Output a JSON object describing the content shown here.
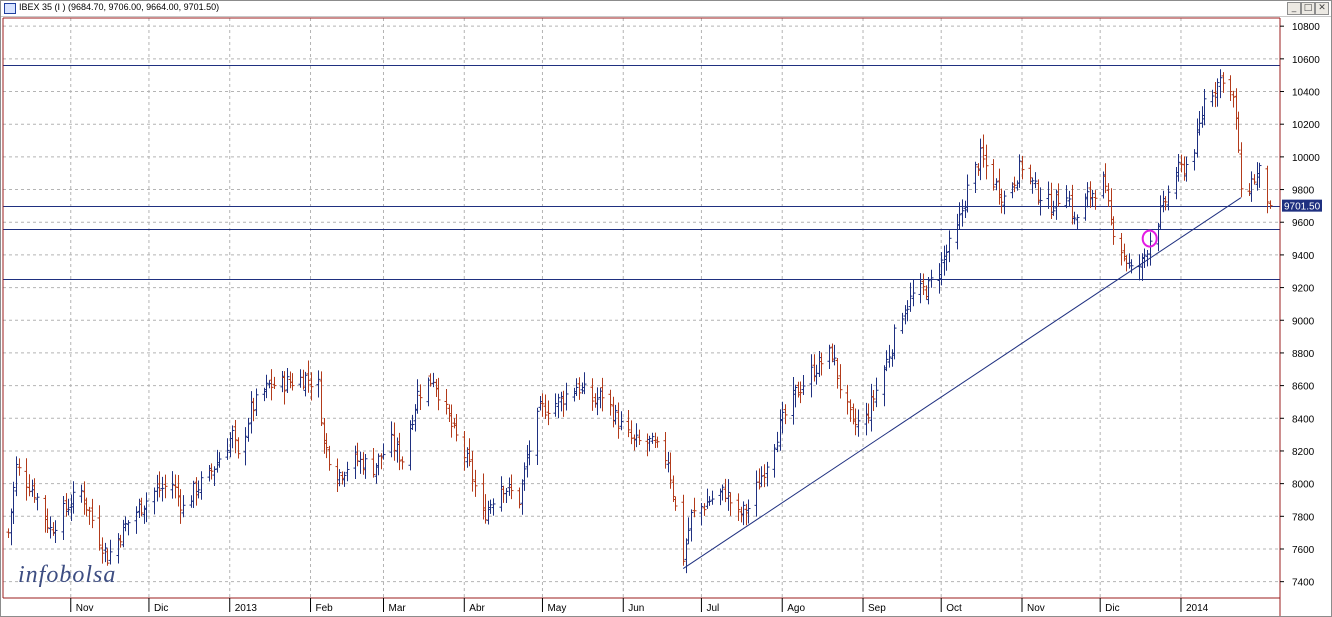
{
  "window": {
    "title": "IBEX 35 (I ) (9684.70, 9706.00, 9664.00, 9701.50)",
    "minimize_label": "_",
    "maximize_label": "□",
    "close_label": "✕"
  },
  "watermark": {
    "text": "infobolsa"
  },
  "colors": {
    "up": "#1f3080",
    "down": "#b23a1a",
    "level_line": "#1f3080",
    "grid": "#b4b4b4",
    "frame": "#9b1c1c",
    "marker": "#e31be3",
    "price_box": "#1f3080"
  },
  "chart_data": {
    "type": "ohlc",
    "title": "IBEX 35 (I ) (9684.70, 9706.00, 9664.00, 9701.50)",
    "frequency": "daily",
    "last_bar": {
      "open": 9684.7,
      "high": 9706.0,
      "low": 9664.0,
      "close": 9701.5
    },
    "ylim": [
      7300,
      10850
    ],
    "y_ticks": [
      7400,
      7600,
      7800,
      8000,
      8200,
      8400,
      8600,
      8800,
      9000,
      9200,
      9400,
      9600,
      9800,
      10000,
      10200,
      10400,
      10600,
      10800
    ],
    "current_price_label": "9701.50",
    "current_price": 9701.5,
    "horizontal_levels": [
      10560,
      9701.5,
      9560,
      9250
    ],
    "trendline": {
      "start": {
        "date": "2013-06-24",
        "value": 7480
      },
      "end": {
        "date": "2014-01-24",
        "value": 9750
      }
    },
    "marker": {
      "date": "2013-12-20",
      "value": 9500
    },
    "x_labels": [
      {
        "label": "Nov",
        "date": "2012-11-01"
      },
      {
        "label": "Dic",
        "date": "2012-12-01"
      },
      {
        "label": "2013",
        "date": "2013-01-01"
      },
      {
        "label": "Feb",
        "date": "2013-02-01"
      },
      {
        "label": "Mar",
        "date": "2013-03-01"
      },
      {
        "label": "Abr",
        "date": "2013-04-01"
      },
      {
        "label": "May",
        "date": "2013-05-01"
      },
      {
        "label": "Jun",
        "date": "2013-06-01"
      },
      {
        "label": "Jul",
        "date": "2013-07-01"
      },
      {
        "label": "Ago",
        "date": "2013-08-01"
      },
      {
        "label": "Sep",
        "date": "2013-09-01"
      },
      {
        "label": "Oct",
        "date": "2013-10-01"
      },
      {
        "label": "Nov",
        "date": "2013-11-01"
      },
      {
        "label": "Dic",
        "date": "2013-12-01"
      },
      {
        "label": "2014",
        "date": "2014-01-01"
      }
    ],
    "close_path": [
      [
        "2012-10-08",
        7700
      ],
      [
        "2012-10-11",
        8100
      ],
      [
        "2012-10-18",
        7950
      ],
      [
        "2012-10-24",
        7720
      ],
      [
        "2012-10-30",
        7850
      ],
      [
        "2012-11-05",
        7950
      ],
      [
        "2012-11-09",
        7780
      ],
      [
        "2012-11-15",
        7550
      ],
      [
        "2012-11-21",
        7720
      ],
      [
        "2012-11-27",
        7850
      ],
      [
        "2012-12-03",
        7950
      ],
      [
        "2012-12-10",
        8000
      ],
      [
        "2012-12-14",
        7850
      ],
      [
        "2012-12-18",
        7950
      ],
      [
        "2012-12-24",
        8050
      ],
      [
        "2013-01-02",
        8300
      ],
      [
        "2013-01-04",
        8150
      ],
      [
        "2013-01-09",
        8450
      ],
      [
        "2013-01-16",
        8600
      ],
      [
        "2013-01-23",
        8620
      ],
      [
        "2013-01-30",
        8650
      ],
      [
        "2013-02-04",
        8600
      ],
      [
        "2013-02-06",
        8250
      ],
      [
        "2013-02-11",
        8050
      ],
      [
        "2013-02-18",
        8150
      ],
      [
        "2013-02-25",
        8100
      ],
      [
        "2013-03-04",
        8250
      ],
      [
        "2013-03-08",
        8150
      ],
      [
        "2013-03-14",
        8550
      ],
      [
        "2013-03-20",
        8650
      ],
      [
        "2013-03-27",
        8350
      ],
      [
        "2013-04-03",
        8100
      ],
      [
        "2013-04-08",
        7800
      ],
      [
        "2013-04-15",
        8000
      ],
      [
        "2013-04-22",
        7900
      ],
      [
        "2013-04-25",
        8150
      ],
      [
        "2013-04-30",
        8450
      ],
      [
        "2013-05-07",
        8500
      ],
      [
        "2013-05-14",
        8600
      ],
      [
        "2013-05-21",
        8500
      ],
      [
        "2013-05-24",
        8550
      ],
      [
        "2013-05-31",
        8350
      ],
      [
        "2013-06-05",
        8250
      ],
      [
        "2013-06-11",
        8250
      ],
      [
        "2013-06-18",
        8150
      ],
      [
        "2013-06-21",
        7850
      ],
      [
        "2013-06-24",
        7550
      ],
      [
        "2013-06-27",
        7800
      ],
      [
        "2013-07-04",
        7900
      ],
      [
        "2013-07-10",
        7950
      ],
      [
        "2013-07-15",
        7800
      ],
      [
        "2013-07-19",
        7850
      ],
      [
        "2013-07-24",
        8050
      ],
      [
        "2013-07-31",
        8350
      ],
      [
        "2013-08-06",
        8550
      ],
      [
        "2013-08-13",
        8700
      ],
      [
        "2013-08-20",
        8800
      ],
      [
        "2013-08-23",
        8600
      ],
      [
        "2013-08-28",
        8350
      ],
      [
        "2013-09-02",
        8400
      ],
      [
        "2013-09-09",
        8700
      ],
      [
        "2013-09-16",
        9050
      ],
      [
        "2013-09-20",
        9150
      ],
      [
        "2013-09-26",
        9200
      ],
      [
        "2013-10-01",
        9350
      ],
      [
        "2013-10-07",
        9550
      ],
      [
        "2013-10-11",
        9800
      ],
      [
        "2013-10-16",
        10000
      ],
      [
        "2013-10-21",
        9850
      ],
      [
        "2013-10-25",
        9750
      ],
      [
        "2013-11-01",
        9950
      ],
      [
        "2013-11-06",
        9800
      ],
      [
        "2013-11-12",
        9700
      ],
      [
        "2013-11-18",
        9800
      ],
      [
        "2013-11-21",
        9600
      ],
      [
        "2013-11-26",
        9750
      ],
      [
        "2013-12-02",
        9850
      ],
      [
        "2013-12-05",
        9600
      ],
      [
        "2013-12-10",
        9400
      ],
      [
        "2013-12-13",
        9300
      ],
      [
        "2013-12-17",
        9350
      ],
      [
        "2013-12-20",
        9500
      ],
      [
        "2013-12-24",
        9650
      ],
      [
        "2013-12-30",
        9900
      ],
      [
        "2014-01-03",
        9950
      ],
      [
        "2014-01-07",
        10100
      ],
      [
        "2014-01-10",
        10350
      ],
      [
        "2014-01-15",
        10450
      ],
      [
        "2014-01-17",
        10500
      ],
      [
        "2014-01-21",
        10350
      ],
      [
        "2014-01-23",
        10050
      ],
      [
        "2014-01-24",
        9750
      ],
      [
        "2014-01-28",
        9850
      ],
      [
        "2014-01-31",
        9900
      ],
      [
        "2014-02-04",
        9701.5
      ]
    ]
  }
}
